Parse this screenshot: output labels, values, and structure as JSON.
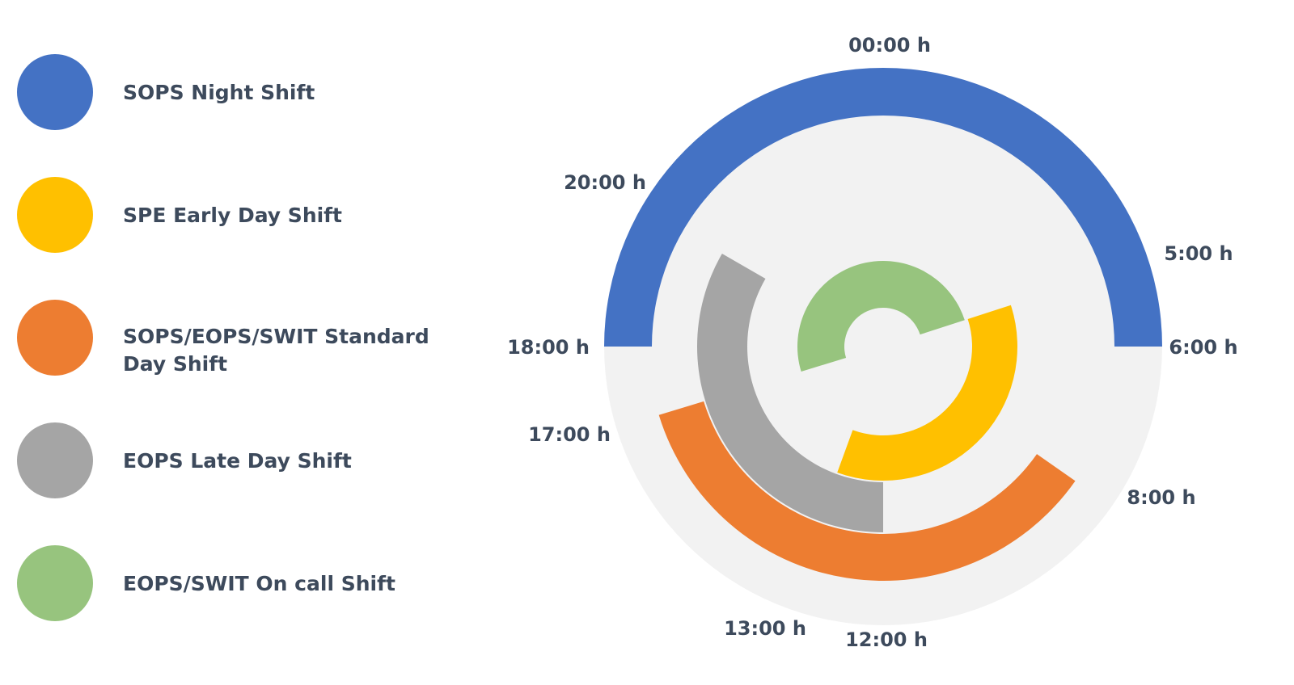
{
  "legend": [
    {
      "label": "SOPS Night Shift",
      "color": "#4472c4"
    },
    {
      "label": "SPE Early Day Shift",
      "color": "#ffc000"
    },
    {
      "label": "SOPS/EOPS/SWIT Standard",
      "label2": "Day Shift",
      "color": "#ed7d31"
    },
    {
      "label": "EOPS Late Day Shift",
      "color": "#a5a5a5"
    },
    {
      "label": "EOPS/SWIT On call Shift",
      "color": "#97c47e"
    }
  ],
  "times": {
    "t0000": "00:00 h",
    "t2000": "20:00 h",
    "t0500": "5:00 h",
    "t1800": "18:00 h",
    "t0600": "6:00 h",
    "t1700": "17:00 h",
    "t0800": "8:00 h",
    "t1300": "13:00 h",
    "t1200": "12:00 h"
  },
  "clock": {
    "background": "#f2f2f2",
    "text_color": "#3d4a5c"
  },
  "shifts": [
    {
      "name": "SOPS Night Shift",
      "color": "#4472c4",
      "start_hour": 18,
      "end_hour": 6
    },
    {
      "name": "SOPS/EOPS/SWIT Standard Day Shift",
      "color": "#ed7d31",
      "start_hour": 8,
      "end_hour": 17
    },
    {
      "name": "EOPS Late Day Shift",
      "color": "#a5a5a5",
      "start_hour": 12,
      "end_hour": 20
    },
    {
      "name": "SPE Early Day Shift",
      "color": "#ffc000",
      "start_hour": 5,
      "end_hour": 13
    },
    {
      "name": "EOPS/SWIT On call Shift",
      "color": "#97c47e",
      "start_hour": 17,
      "end_hour": 5
    }
  ]
}
